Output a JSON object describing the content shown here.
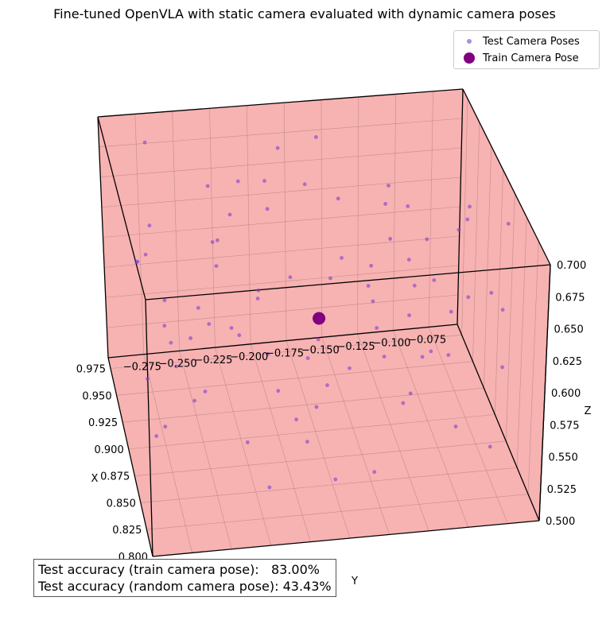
{
  "chart_data": {
    "type": "scatter",
    "title": "Fine-tuned OpenVLA with static camera evaluated with dynamic camera poses",
    "xlabel": "X",
    "ylabel": "Y",
    "zlabel": "Z",
    "xlim": [
      0.8,
      0.985
    ],
    "ylim": [
      -0.3,
      -0.055
    ],
    "zlim": [
      0.5,
      0.7
    ],
    "x_ticks": [
      "0.800",
      "0.825",
      "0.850",
      "0.875",
      "0.900",
      "0.925",
      "0.950",
      "0.975"
    ],
    "y_ticks": [
      "−0.275",
      "−0.250",
      "−0.225",
      "−0.200",
      "−0.175",
      "−0.150",
      "−0.125",
      "−0.100",
      "−0.075"
    ],
    "z_ticks": [
      "0.500",
      "0.525",
      "0.550",
      "0.575",
      "0.600",
      "0.625",
      "0.650",
      "0.675",
      "0.700"
    ],
    "grid": true,
    "legend_position": "top-right",
    "box_fill": "#f7b2b2",
    "series": [
      {
        "name": "Test Camera Poses",
        "color": "#7b3fd0",
        "points": [
          [
            0.8,
            -0.16,
            0.55
          ],
          [
            0.84,
            -0.25,
            0.69
          ],
          [
            0.82,
            -0.11,
            0.62
          ],
          [
            0.86,
            -0.2,
            0.66
          ],
          [
            0.88,
            -0.27,
            0.58
          ],
          [
            0.9,
            -0.13,
            0.68
          ],
          [
            0.83,
            -0.22,
            0.52
          ],
          [
            0.85,
            -0.09,
            0.64
          ],
          [
            0.87,
            -0.18,
            0.6
          ],
          [
            0.89,
            -0.24,
            0.67
          ],
          [
            0.91,
            -0.15,
            0.54
          ],
          [
            0.93,
            -0.28,
            0.63
          ],
          [
            0.95,
            -0.1,
            0.59
          ],
          [
            0.97,
            -0.21,
            0.65
          ],
          [
            0.81,
            -0.27,
            0.61
          ],
          [
            0.92,
            -0.08,
            0.57
          ],
          [
            0.94,
            -0.19,
            0.7
          ],
          [
            0.96,
            -0.26,
            0.53
          ],
          [
            0.98,
            -0.14,
            0.62
          ],
          [
            0.82,
            -0.12,
            0.68
          ],
          [
            0.84,
            -0.29,
            0.56
          ],
          [
            0.86,
            -0.07,
            0.51
          ],
          [
            0.88,
            -0.17,
            0.64
          ],
          [
            0.9,
            -0.23,
            0.59
          ],
          [
            0.92,
            -0.11,
            0.66
          ],
          [
            0.94,
            -0.25,
            0.55
          ],
          [
            0.96,
            -0.16,
            0.69
          ],
          [
            0.83,
            -0.19,
            0.58
          ],
          [
            0.85,
            -0.26,
            0.65
          ],
          [
            0.87,
            -0.09,
            0.52
          ],
          [
            0.89,
            -0.14,
            0.61
          ],
          [
            0.91,
            -0.28,
            0.67
          ],
          [
            0.93,
            -0.2,
            0.54
          ],
          [
            0.95,
            -0.06,
            0.63
          ],
          [
            0.97,
            -0.12,
            0.57
          ],
          [
            0.81,
            -0.08,
            0.66
          ],
          [
            0.8,
            -0.22,
            0.62
          ],
          [
            0.85,
            -0.13,
            0.56
          ],
          [
            0.88,
            -0.21,
            0.7
          ],
          [
            0.9,
            -0.06,
            0.6
          ],
          [
            0.93,
            -0.16,
            0.51
          ],
          [
            0.96,
            -0.23,
            0.61
          ],
          [
            0.98,
            -0.27,
            0.68
          ],
          [
            0.82,
            -0.18,
            0.53
          ],
          [
            0.87,
            -0.25,
            0.62
          ],
          [
            0.91,
            -0.1,
            0.64
          ],
          [
            0.94,
            -0.13,
            0.58
          ],
          [
            0.84,
            -0.07,
            0.59
          ],
          [
            0.86,
            -0.28,
            0.63
          ],
          [
            0.89,
            -0.19,
            0.52
          ],
          [
            0.92,
            -0.24,
            0.69
          ],
          [
            0.95,
            -0.17,
            0.66
          ],
          [
            0.97,
            -0.09,
            0.55
          ],
          [
            0.8,
            -0.14,
            0.67
          ],
          [
            0.83,
            -0.26,
            0.6
          ],
          [
            0.88,
            -0.11,
            0.57
          ],
          [
            0.9,
            -0.29,
            0.65
          ],
          [
            0.94,
            -0.07,
            0.62
          ],
          [
            0.96,
            -0.2,
            0.56
          ],
          [
            0.98,
            -0.15,
            0.52
          ],
          [
            0.81,
            -0.2,
            0.57
          ],
          [
            0.85,
            -0.17,
            0.68
          ],
          [
            0.87,
            -0.12,
            0.55
          ],
          [
            0.92,
            -0.27,
            0.6
          ],
          [
            0.95,
            -0.22,
            0.64
          ],
          [
            0.97,
            -0.28,
            0.59
          ],
          [
            0.84,
            -0.15,
            0.63
          ],
          [
            0.89,
            -0.08,
            0.67
          ],
          [
            0.93,
            -0.09,
            0.53
          ],
          [
            0.96,
            -0.11,
            0.6
          ],
          [
            0.82,
            -0.24,
            0.65
          ],
          [
            0.86,
            -0.14,
            0.59
          ],
          [
            0.9,
            -0.18,
            0.56
          ],
          [
            0.94,
            -0.28,
            0.52
          ],
          [
            0.98,
            -0.19,
            0.64
          ],
          [
            0.8,
            -0.29,
            0.6
          ],
          [
            0.91,
            -0.21,
            0.61
          ],
          [
            0.87,
            -0.06,
            0.68
          ],
          [
            0.93,
            -0.12,
            0.67
          ],
          [
            0.85,
            -0.23,
            0.54
          ]
        ]
      },
      {
        "name": "Train Camera Pose",
        "color": "#800080",
        "points": [
          [
            0.89,
            -0.175,
            0.6
          ]
        ]
      }
    ]
  },
  "accuracy": {
    "train": "Test accuracy (train camera pose):   83.00%",
    "random": "Test accuracy (random camera pose): 43.43%"
  }
}
